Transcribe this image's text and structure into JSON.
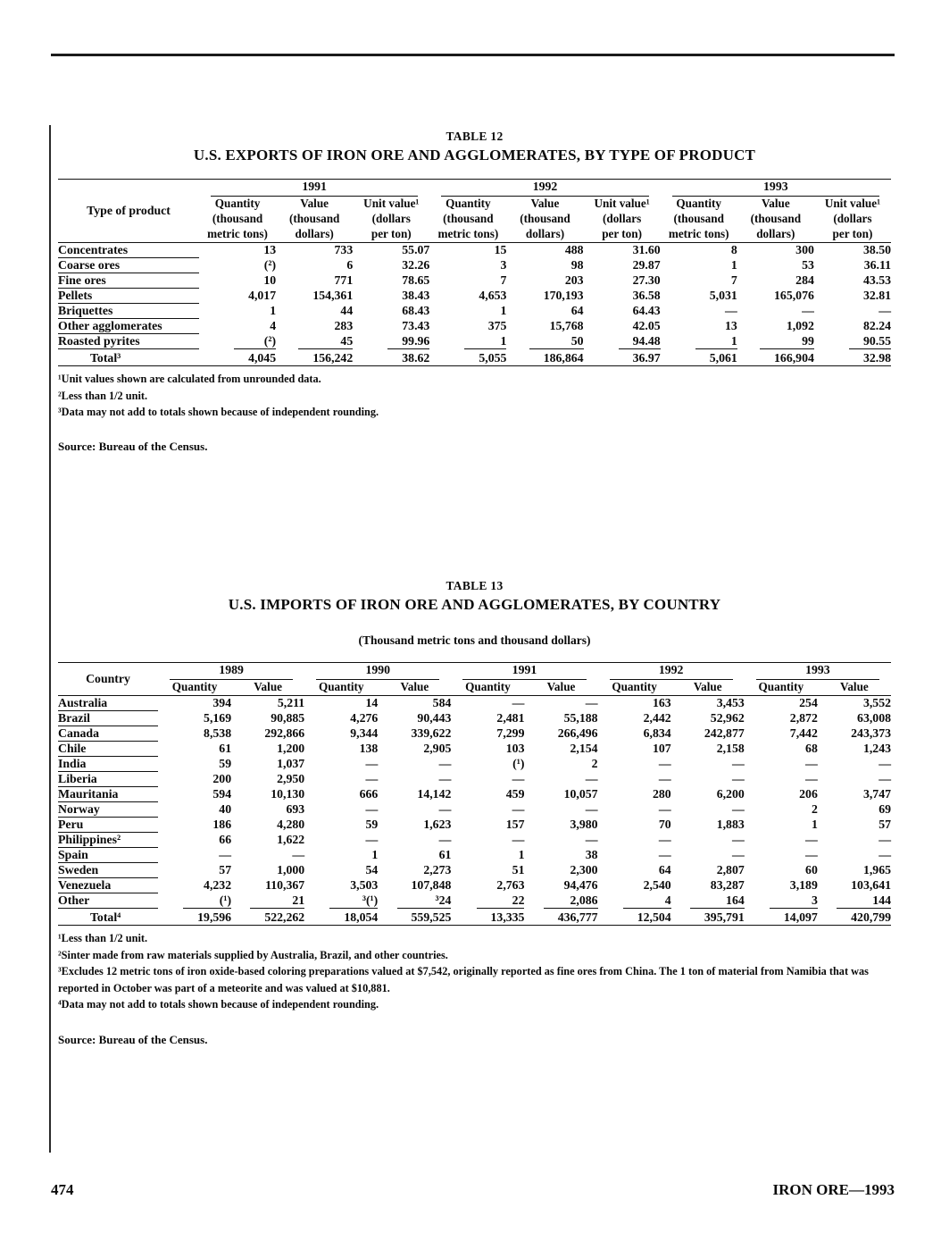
{
  "page": {
    "page_number": "474",
    "footer_right": "IRON ORE—1993"
  },
  "table12": {
    "table_label": "TABLE 12",
    "title": "U.S. EXPORTS OF IRON ORE AND AGGLOMERATES, BY TYPE OF PRODUCT",
    "stub_header": "Type of product",
    "year_groups": [
      "1991",
      "1992",
      "1993"
    ],
    "sub_columns": [
      [
        "Quantity",
        "(thousand",
        "metric tons)"
      ],
      [
        "Value",
        "(thousand",
        "dollars)"
      ],
      [
        "Unit value¹",
        "(dollars",
        "per ton)"
      ]
    ],
    "rows": [
      {
        "label": "Concentrates",
        "values": [
          "13",
          "733",
          "55.07",
          "15",
          "488",
          "31.60",
          "8",
          "300",
          "38.50"
        ]
      },
      {
        "label": "Coarse ores",
        "values": [
          "(²)",
          "6",
          "32.26",
          "3",
          "98",
          "29.87",
          "1",
          "53",
          "36.11"
        ]
      },
      {
        "label": "Fine ores",
        "values": [
          "10",
          "771",
          "78.65",
          "7",
          "203",
          "27.30",
          "7",
          "284",
          "43.53"
        ]
      },
      {
        "label": "Pellets",
        "values": [
          "4,017",
          "154,361",
          "38.43",
          "4,653",
          "170,193",
          "36.58",
          "5,031",
          "165,076",
          "32.81"
        ]
      },
      {
        "label": "Briquettes",
        "values": [
          "1",
          "44",
          "68.43",
          "1",
          "64",
          "64.43",
          "—",
          "—",
          "—"
        ]
      },
      {
        "label": "Other agglomerates",
        "values": [
          "4",
          "283",
          "73.43",
          "375",
          "15,768",
          "42.05",
          "13",
          "1,092",
          "82.24"
        ]
      },
      {
        "label": "Roasted pyrites",
        "values": [
          "(²)",
          "45",
          "99.96",
          "1",
          "50",
          "94.48",
          "1",
          "99",
          "90.55"
        ]
      }
    ],
    "total_row": {
      "label": "Total³",
      "values": [
        "4,045",
        "156,242",
        "38.62",
        "5,055",
        "186,864",
        "36.97",
        "5,061",
        "166,904",
        "32.98"
      ]
    },
    "footnotes": [
      "¹Unit values shown are calculated from unrounded data.",
      "²Less than 1/2 unit.",
      "³Data may not add to totals shown because of independent rounding."
    ],
    "source": "Source:  Bureau of the Census."
  },
  "table13": {
    "table_label": "TABLE 13",
    "title": "U.S. IMPORTS OF IRON ORE AND AGGLOMERATES, BY COUNTRY",
    "subtitle": "(Thousand metric tons and thousand dollars)",
    "stub_header": "Country",
    "year_groups": [
      "1989",
      "1990",
      "1991",
      "1992",
      "1993"
    ],
    "sub_columns": [
      [
        "Quantity"
      ],
      [
        "Value"
      ]
    ],
    "rows": [
      {
        "label": "Australia",
        "values": [
          "394",
          "5,211",
          "14",
          "584",
          "—",
          "—",
          "163",
          "3,453",
          "254",
          "3,552"
        ]
      },
      {
        "label": "Brazil",
        "values": [
          "5,169",
          "90,885",
          "4,276",
          "90,443",
          "2,481",
          "55,188",
          "2,442",
          "52,962",
          "2,872",
          "63,008"
        ]
      },
      {
        "label": "Canada",
        "values": [
          "8,538",
          "292,866",
          "9,344",
          "339,622",
          "7,299",
          "266,496",
          "6,834",
          "242,877",
          "7,442",
          "243,373"
        ]
      },
      {
        "label": "Chile",
        "values": [
          "61",
          "1,200",
          "138",
          "2,905",
          "103",
          "2,154",
          "107",
          "2,158",
          "68",
          "1,243"
        ]
      },
      {
        "label": "India",
        "values": [
          "59",
          "1,037",
          "—",
          "—",
          "(¹)",
          "2",
          "—",
          "—",
          "—",
          "—"
        ]
      },
      {
        "label": "Liberia",
        "values": [
          "200",
          "2,950",
          "—",
          "—",
          "—",
          "—",
          "—",
          "—",
          "—",
          "—"
        ]
      },
      {
        "label": "Mauritania",
        "values": [
          "594",
          "10,130",
          "666",
          "14,142",
          "459",
          "10,057",
          "280",
          "6,200",
          "206",
          "3,747"
        ]
      },
      {
        "label": "Norway",
        "values": [
          "40",
          "693",
          "—",
          "—",
          "—",
          "—",
          "—",
          "—",
          "2",
          "69"
        ]
      },
      {
        "label": "Peru",
        "values": [
          "186",
          "4,280",
          "59",
          "1,623",
          "157",
          "3,980",
          "70",
          "1,883",
          "1",
          "57"
        ]
      },
      {
        "label": "Philippines²",
        "values": [
          "66",
          "1,622",
          "—",
          "—",
          "—",
          "—",
          "—",
          "—",
          "—",
          "—"
        ]
      },
      {
        "label": "Spain",
        "values": [
          "—",
          "—",
          "1",
          "61",
          "1",
          "38",
          "—",
          "—",
          "—",
          "—"
        ]
      },
      {
        "label": "Sweden",
        "values": [
          "57",
          "1,000",
          "54",
          "2,273",
          "51",
          "2,300",
          "64",
          "2,807",
          "60",
          "1,965"
        ]
      },
      {
        "label": "Venezuela",
        "values": [
          "4,232",
          "110,367",
          "3,503",
          "107,848",
          "2,763",
          "94,476",
          "2,540",
          "83,287",
          "3,189",
          "103,641"
        ]
      },
      {
        "label": "Other",
        "values": [
          "(¹)",
          "21",
          "³(¹)",
          "³24",
          "22",
          "2,086",
          "4",
          "164",
          "3",
          "144"
        ]
      }
    ],
    "total_row": {
      "label": "Total⁴",
      "values": [
        "19,596",
        "522,262",
        "18,054",
        "559,525",
        "13,335",
        "436,777",
        "12,504",
        "395,791",
        "14,097",
        "420,799"
      ]
    },
    "footnotes": [
      "¹Less than 1/2 unit.",
      "²Sinter made from raw materials supplied by Australia, Brazil, and other countries.",
      "³Excludes 12 metric tons of iron oxide-based coloring preparations valued at $7,542, originally reported as fine ores from China.  The 1 ton of material from Namibia that was reported in October was part of a meteorite and was valued at $10,881.",
      "⁴Data may not add to totals shown because of independent rounding."
    ],
    "source": "Source:  Bureau of the Census."
  }
}
